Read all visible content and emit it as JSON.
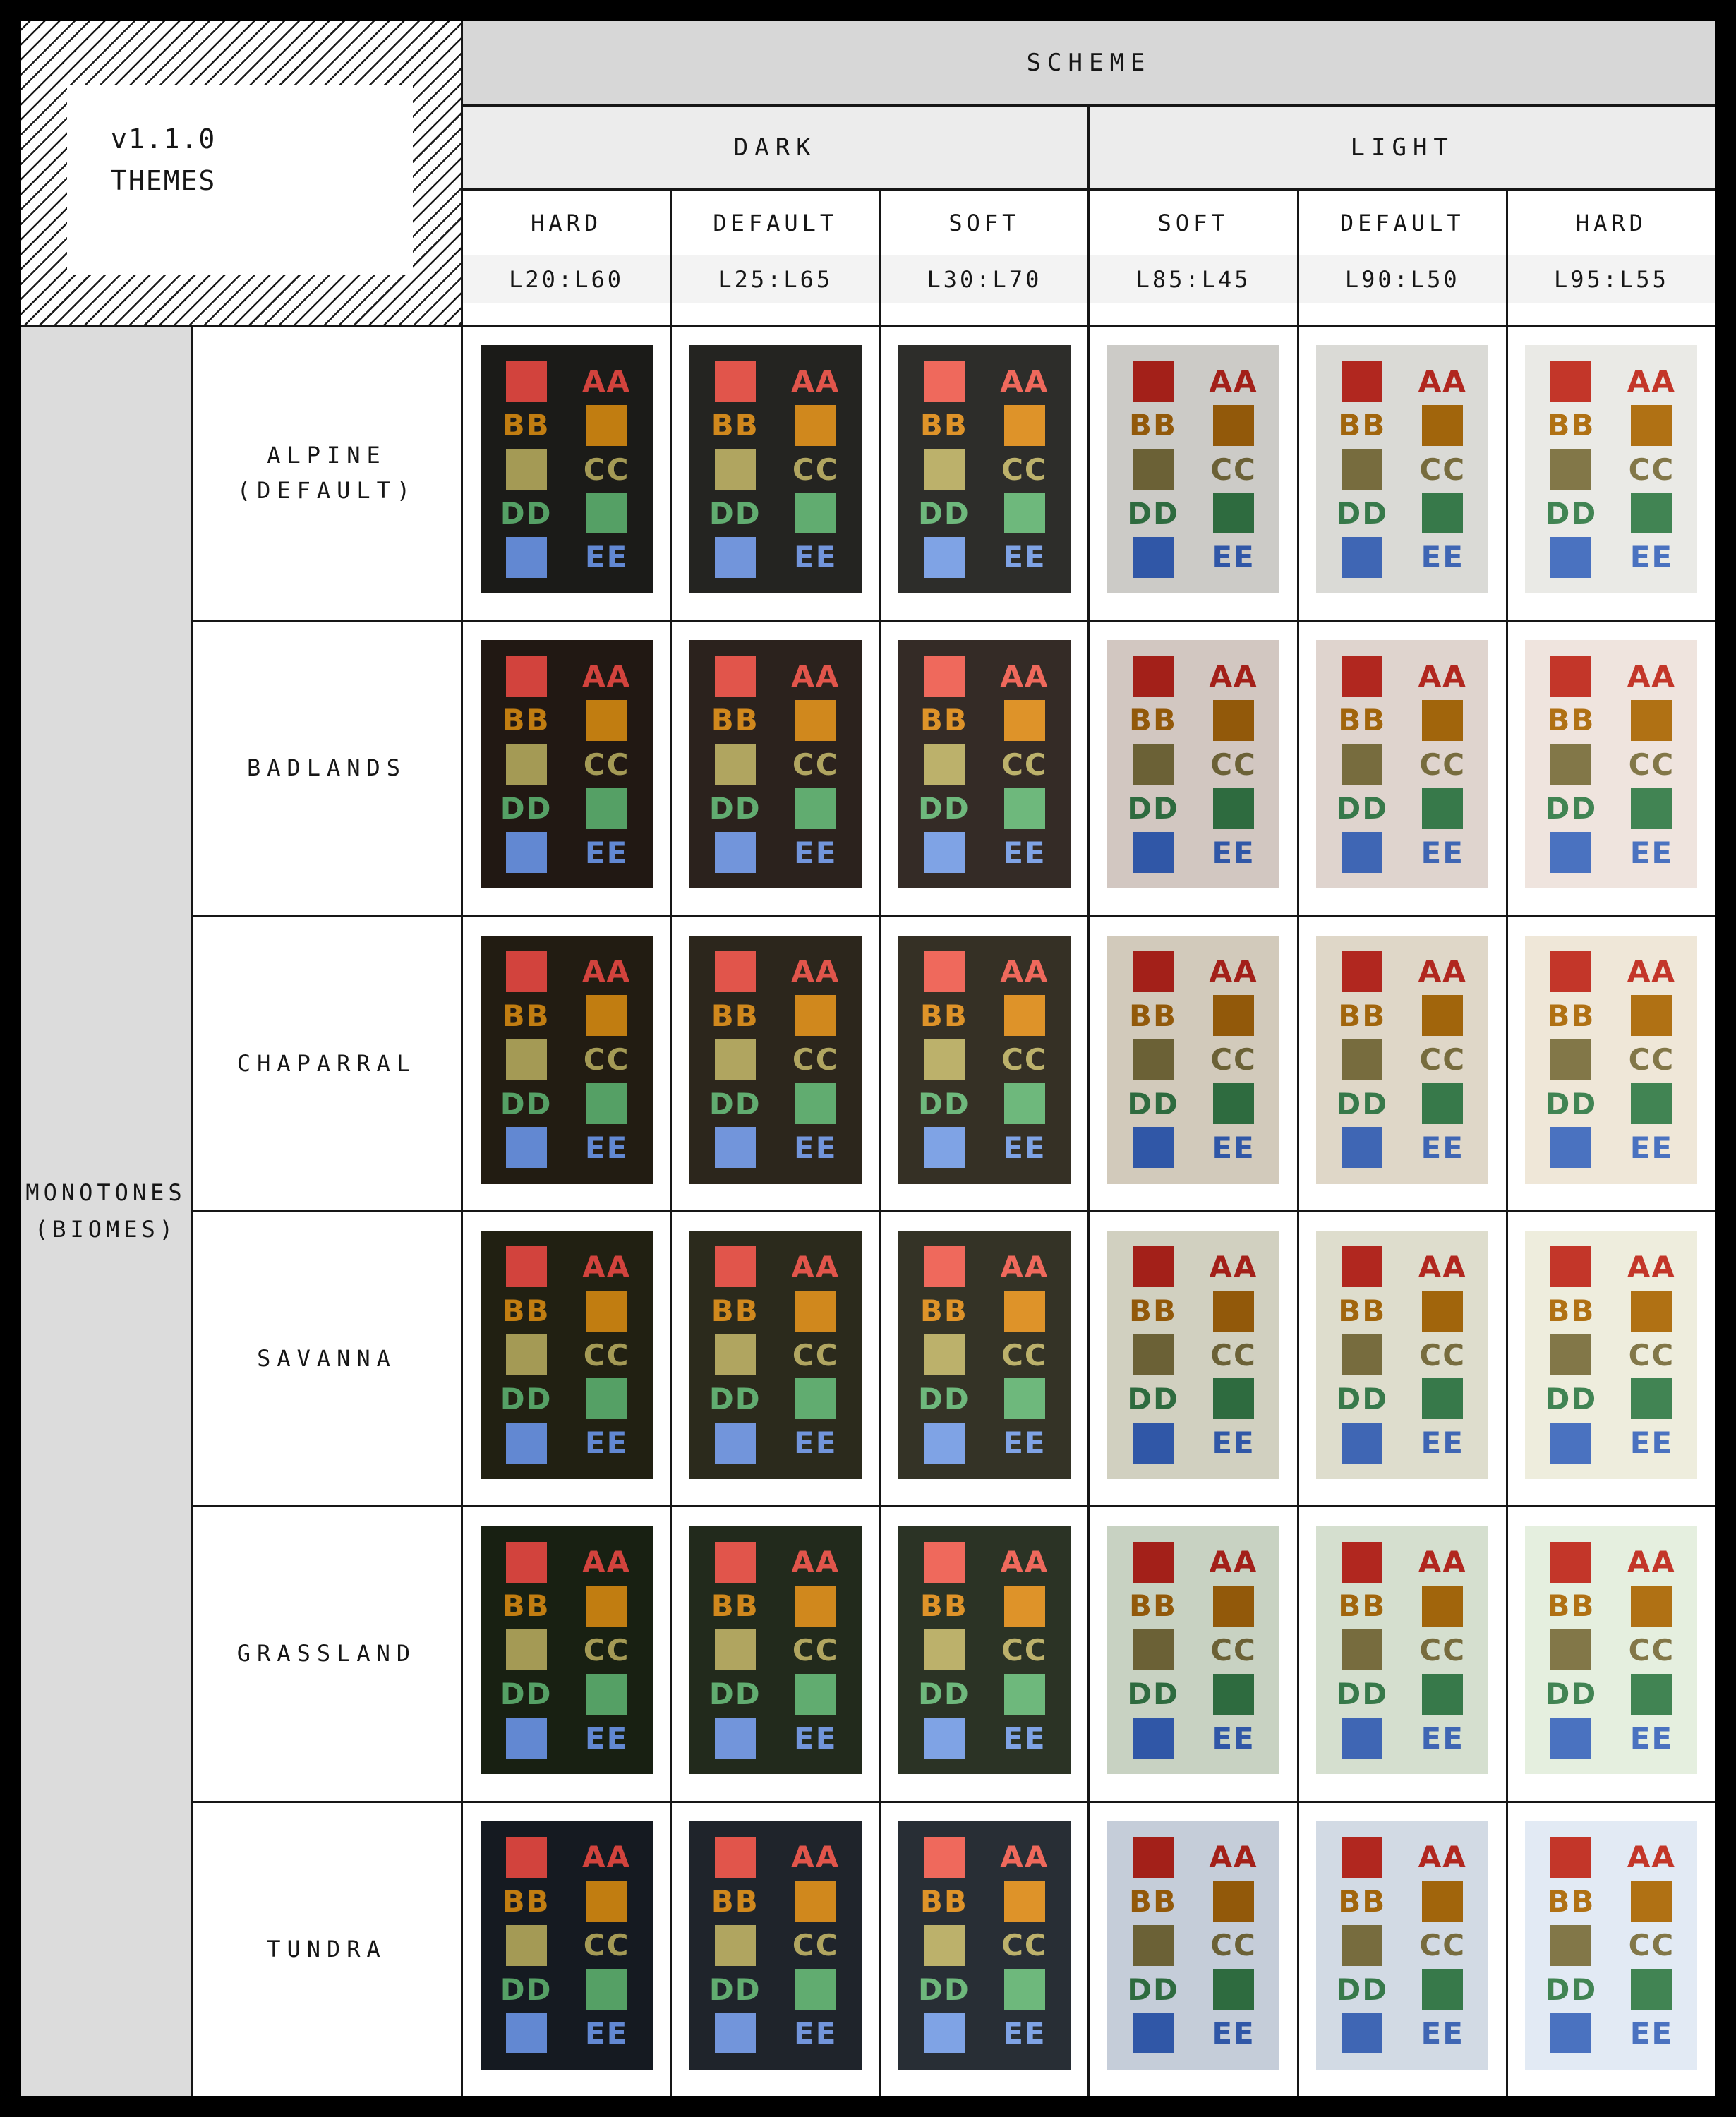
{
  "badge": {
    "version": "v1.1.0",
    "title": "THEMES"
  },
  "header": {
    "scheme": "SCHEME",
    "groups": [
      {
        "label": "DARK"
      },
      {
        "label": "LIGHT"
      }
    ],
    "columns": [
      {
        "id": "dark-hard",
        "group": "DARK",
        "name": "HARD",
        "lightness": "L20:L60"
      },
      {
        "id": "dark-default",
        "group": "DARK",
        "name": "DEFAULT",
        "lightness": "L25:L65"
      },
      {
        "id": "dark-soft",
        "group": "DARK",
        "name": "SOFT",
        "lightness": "L30:L70"
      },
      {
        "id": "light-soft",
        "group": "LIGHT",
        "name": "SOFT",
        "lightness": "L85:L45"
      },
      {
        "id": "light-default",
        "group": "LIGHT",
        "name": "DEFAULT",
        "lightness": "L90:L50"
      },
      {
        "id": "light-hard",
        "group": "LIGHT",
        "name": "HARD",
        "lightness": "L95:L55"
      }
    ]
  },
  "sidebar": {
    "line1": "MONOTONES",
    "line2": "(BIOMES)"
  },
  "swatch_labels": {
    "aa": "AA",
    "bb": "BB",
    "cc": "CC",
    "dd": "DD",
    "ee": "EE"
  },
  "palettes": [
    {
      "aa": "#d2433d",
      "bb": "#c17d11",
      "cc": "#a49a55",
      "dd": "#55a065",
      "ee": "#6288d2"
    },
    {
      "aa": "#e1554b",
      "bb": "#d0881d",
      "cc": "#b0a560",
      "dd": "#61ac70",
      "ee": "#7295db"
    },
    {
      "aa": "#ef695c",
      "bb": "#de9329",
      "cc": "#bcb16b",
      "dd": "#6eb87c",
      "ee": "#7fa3e5"
    },
    {
      "aa": "#a32019",
      "bb": "#92590a",
      "cc": "#6b6136",
      "dd": "#2e6b3f",
      "ee": "#3057a7"
    },
    {
      "aa": "#b1271f",
      "bb": "#a1650c",
      "cc": "#776c3e",
      "dd": "#37794a",
      "ee": "#3f66b4"
    },
    {
      "aa": "#c33629",
      "bb": "#b07114",
      "cc": "#827748",
      "dd": "#418453",
      "ee": "#4a72c0"
    }
  ],
  "rows": [
    {
      "id": "alpine",
      "lines": [
        "ALPINE",
        "(DEFAULT)"
      ],
      "backgrounds": [
        "#1b1b18",
        "#242421",
        "#2d2d2a",
        "#cccbc7",
        "#dadad6",
        "#eaeae6"
      ]
    },
    {
      "id": "badlands",
      "lines": [
        "BADLANDS"
      ],
      "backgrounds": [
        "#211813",
        "#2b221d",
        "#342b26",
        "#d2c7c1",
        "#dfd4ce",
        "#efe4de"
      ]
    },
    {
      "id": "chaparral",
      "lines": [
        "CHAPARRAL"
      ],
      "backgrounds": [
        "#221c12",
        "#2c261c",
        "#353025",
        "#d2cabb",
        "#dfd7c8",
        "#efe7d8"
      ]
    },
    {
      "id": "savanna",
      "lines": [
        "SAVANNA"
      ],
      "backgrounds": [
        "#212012",
        "#2b2a1c",
        "#343326",
        "#d1d0c0",
        "#deddcd",
        "#eeeddd"
      ]
    },
    {
      "id": "grassland",
      "lines": [
        "GRASSLAND"
      ],
      "backgrounds": [
        "#182012",
        "#222a1c",
        "#2b3325",
        "#c8d2c2",
        "#d5dfcf",
        "#e5efdf"
      ]
    },
    {
      "id": "tundra",
      "lines": [
        "TUNDRA"
      ],
      "backgrounds": [
        "#151a21",
        "#1f242b",
        "#282e35",
        "#c5cdd9",
        "#d2dae4",
        "#e2eaf4"
      ]
    }
  ],
  "colors": {
    "frame": "#000000",
    "grid_lines": "#161616",
    "scheme_band": "#d7d7d7",
    "group_band": "#ececec",
    "lum_band": "#f3f3f3",
    "sidebar_bg": "#dcdcdc",
    "cell_bg": "#ffffff",
    "text": "#161616"
  }
}
